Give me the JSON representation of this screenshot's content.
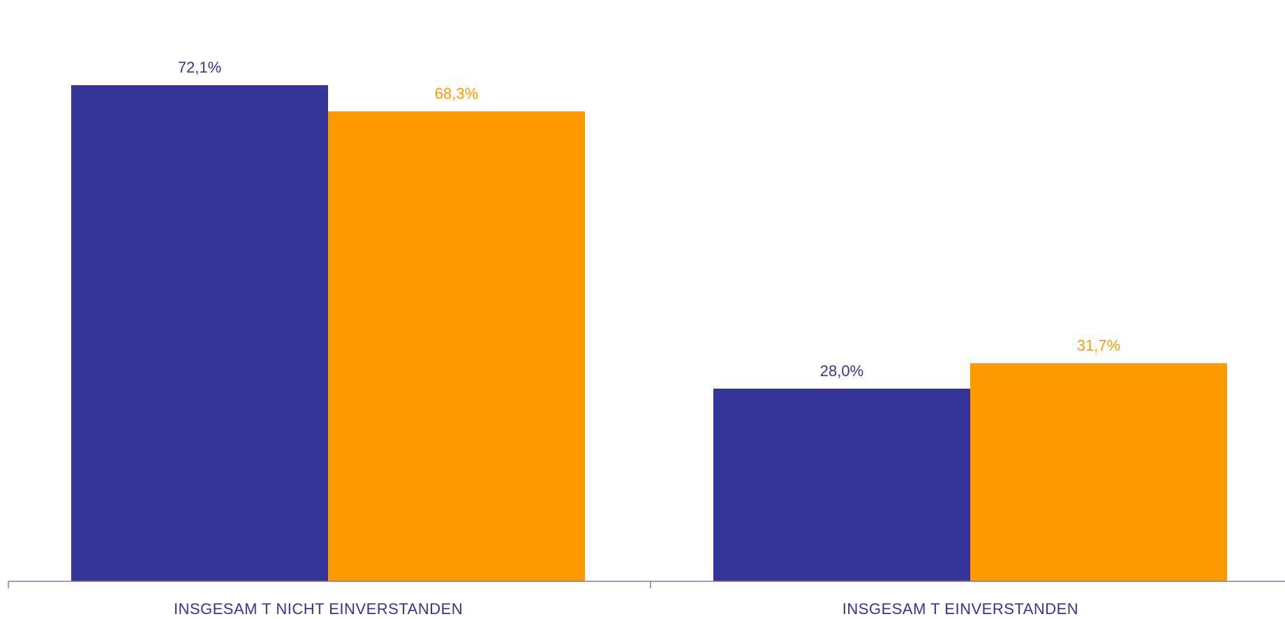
{
  "chart_data": {
    "type": "bar",
    "title": "",
    "xlabel": "",
    "ylabel": "",
    "categories": [
      "INSGESAM T NICHT EINVERSTANDEN",
      "INSGESAM T EINVERSTANDEN"
    ],
    "series": [
      {
        "values": [
          72.1,
          28.0
        ],
        "value_labels": [
          "72,1%",
          "28,0%"
        ],
        "color": "#343499"
      },
      {
        "values": [
          68.3,
          31.7
        ],
        "value_labels": [
          "68,3%",
          "31,7%"
        ],
        "color": "#FF9900"
      }
    ],
    "ylim": [
      0,
      75
    ],
    "grid": false,
    "legend": "none",
    "axis_color": "#7F7FB2",
    "category_label_color": "#343499"
  }
}
